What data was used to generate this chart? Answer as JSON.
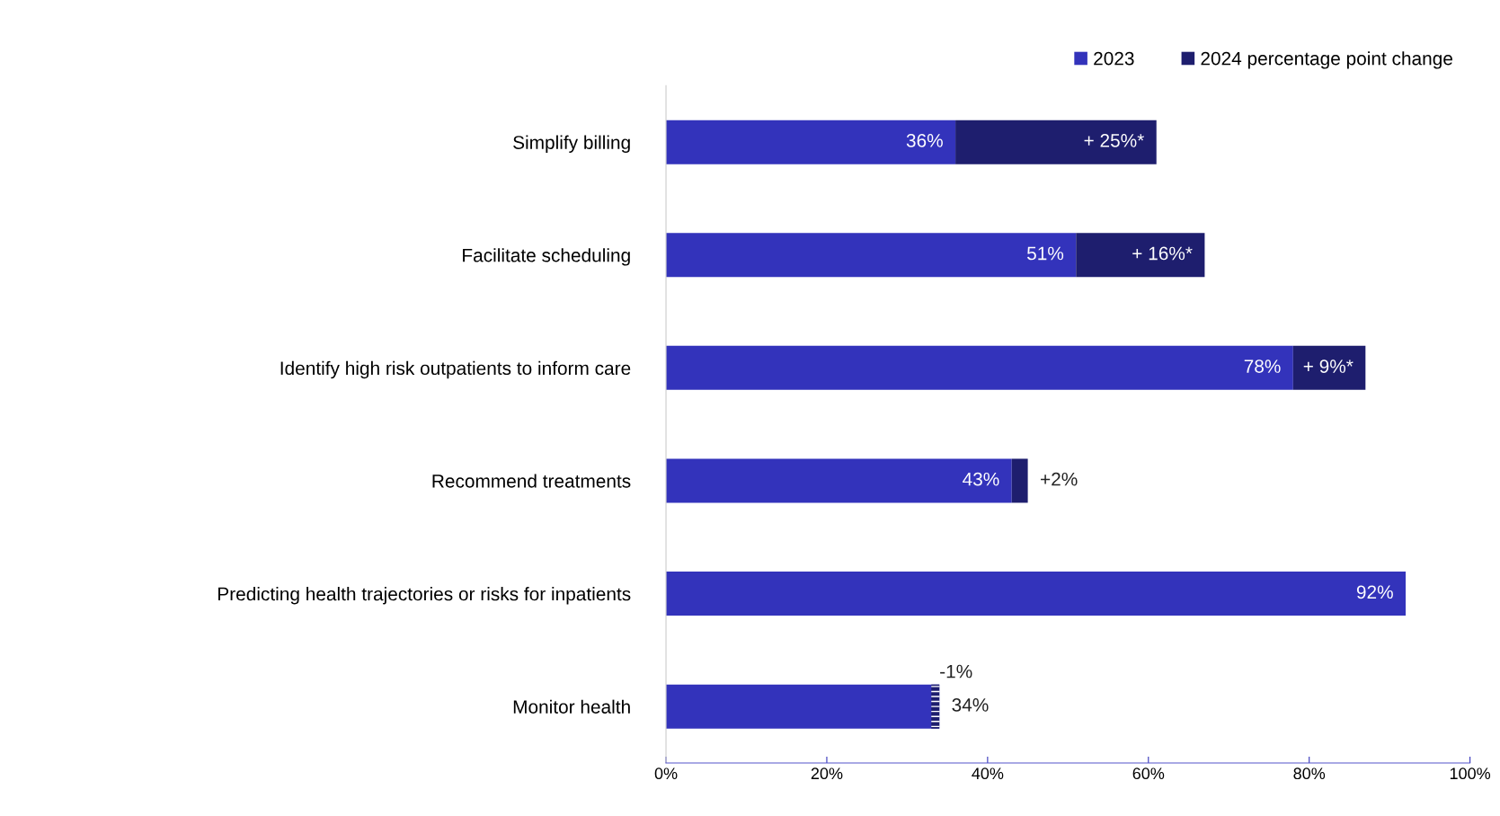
{
  "chart_data": {
    "type": "bar",
    "orientation": "horizontal",
    "stacked": true,
    "categories": [
      "Simplify billing",
      "Facilitate scheduling",
      "Identify high risk outpatients to inform care",
      "Recommend treatments",
      "Predicting health trajectories or risks for inpatients",
      "Monitor health"
    ],
    "series": [
      {
        "name": "2023",
        "color": "#3333bb",
        "values": [
          36,
          51,
          78,
          43,
          92,
          34
        ],
        "value_labels": [
          "36%",
          "51%",
          "78%",
          "43%",
          "92%",
          "34%"
        ]
      },
      {
        "name": "2024 percentage point change",
        "color": "#1e1e6e",
        "base": [
          36,
          51,
          78,
          43,
          null,
          34
        ],
        "values": [
          25,
          16,
          9,
          2,
          null,
          -1
        ],
        "value_labels": [
          "+ 25%*",
          "+ 16%*",
          "+ 9%*",
          "+2%",
          null,
          "-1%"
        ]
      }
    ],
    "xlim": [
      0,
      100
    ],
    "xticks": [
      {
        "value": 0,
        "label": "0%"
      },
      {
        "value": 20,
        "label": "20%"
      },
      {
        "value": 40,
        "label": "40%"
      },
      {
        "value": 60,
        "label": "60%"
      },
      {
        "value": 80,
        "label": "80%"
      },
      {
        "value": 100,
        "label": "100%"
      }
    ],
    "legend": "top right",
    "grid": false
  }
}
